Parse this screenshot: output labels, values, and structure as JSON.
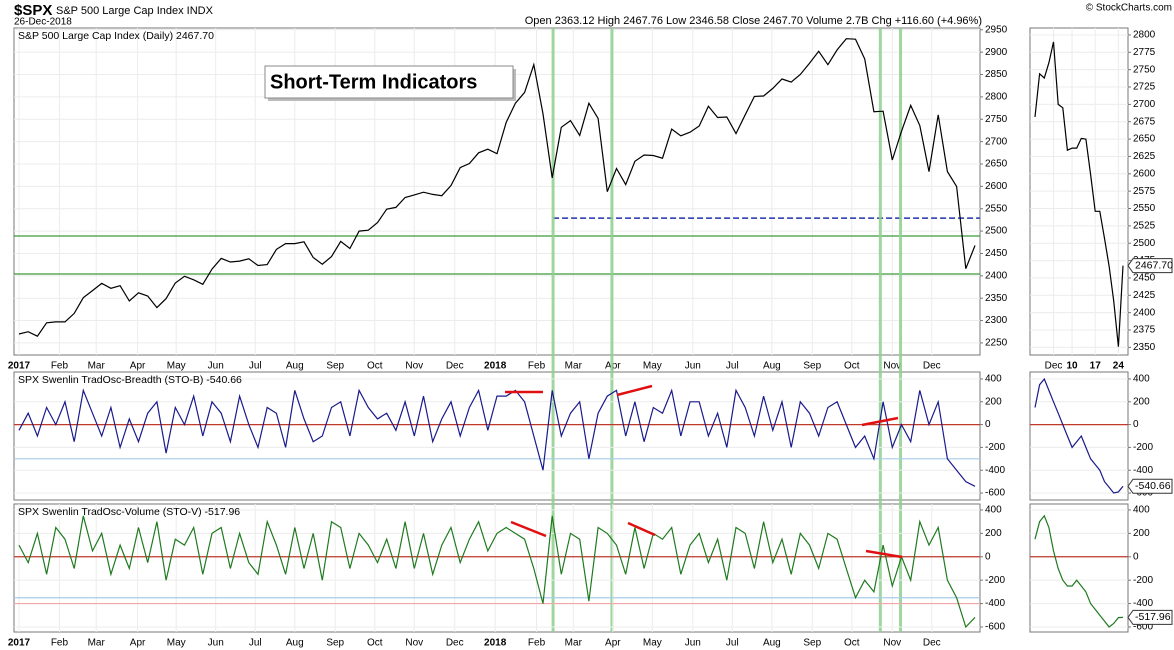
{
  "header": {
    "symbol": "$SPX",
    "name": "S&P 500 Large Cap Index INDX",
    "date": "26-Dec-2018",
    "quote": "Open 2363.12 High 2467.76 Low 2346.58 Close 2467.70 Volume 2.7B Chg +116.60 (+4.96%)",
    "credit": "© StockCharts.com"
  },
  "annotation": "Short-Term Indicators",
  "chart_data": [
    {
      "type": "line",
      "legend": "S&P 500 Large Cap Index (Daily) 2467.70",
      "color": "#000000",
      "grid": true,
      "values": [
        2270,
        2275,
        2265,
        2295,
        2297,
        2297,
        2316,
        2351,
        2367,
        2383,
        2372,
        2378,
        2344,
        2362,
        2355,
        2329,
        2349,
        2384,
        2399,
        2391,
        2381,
        2415,
        2439,
        2431,
        2433,
        2438,
        2423,
        2425,
        2459,
        2472,
        2472,
        2476,
        2441,
        2426,
        2443,
        2477,
        2461,
        2500,
        2502,
        2519,
        2549,
        2553,
        2575,
        2581,
        2587,
        2582,
        2579,
        2602,
        2642,
        2651,
        2675,
        2683,
        2673,
        2743,
        2786,
        2810,
        2872,
        2762,
        2619,
        2732,
        2747,
        2714,
        2786,
        2752,
        2588,
        2640,
        2604,
        2656,
        2670,
        2669,
        2663,
        2728,
        2713,
        2721,
        2735,
        2779,
        2754,
        2755,
        2718,
        2760,
        2801,
        2802,
        2819,
        2840,
        2833,
        2850,
        2875,
        2902,
        2872,
        2905,
        2930,
        2929,
        2885,
        2767,
        2768,
        2659,
        2723,
        2781,
        2736,
        2633,
        2760,
        2633,
        2600,
        2416,
        2467.7
      ],
      "ylim": [
        2223,
        2954
      ],
      "yticks": [
        2250,
        2300,
        2350,
        2400,
        2450,
        2500,
        2550,
        2600,
        2650,
        2700,
        2750,
        2800,
        2850,
        2900,
        2950
      ],
      "xticks": [
        {
          "value": 0,
          "label": "2017"
        },
        {
          "value": 4.4,
          "label": "Feb"
        },
        {
          "value": 8.4,
          "label": "Mar"
        },
        {
          "value": 12.9,
          "label": "Apr"
        },
        {
          "value": 17.1,
          "label": "May"
        },
        {
          "value": 21.4,
          "label": "Jun"
        },
        {
          "value": 25.7,
          "label": "Jul"
        },
        {
          "value": 30,
          "label": "Aug"
        },
        {
          "value": 34.4,
          "label": "Sep"
        },
        {
          "value": 38.7,
          "label": "Oct"
        },
        {
          "value": 43,
          "label": "Nov"
        },
        {
          "value": 47.4,
          "label": "Dec"
        },
        {
          "value": 51.8,
          "label": "2018"
        },
        {
          "value": 56.3,
          "label": "Feb"
        },
        {
          "value": 60.3,
          "label": "Mar"
        },
        {
          "value": 64.6,
          "label": "Apr"
        },
        {
          "value": 68.9,
          "label": "May"
        },
        {
          "value": 73.3,
          "label": "Jun"
        },
        {
          "value": 77.6,
          "label": "Jul"
        },
        {
          "value": 81.9,
          "label": "Aug"
        },
        {
          "value": 86.3,
          "label": "Sep"
        },
        {
          "value": 90.6,
          "label": "Oct"
        },
        {
          "value": 95,
          "label": "Nov"
        },
        {
          "value": 99.3,
          "label": "Dec"
        }
      ],
      "hlines": [
        {
          "value": 2489,
          "color": "#3a9a3a"
        },
        {
          "value": 2404,
          "color": "#3a9a3a"
        },
        {
          "value": 2529,
          "color": "#2233aa",
          "dashed": true,
          "from": 58.1
        }
      ],
      "vlines": [
        58.1,
        64.5,
        93.7,
        95.9
      ],
      "vline_color": "#8fd08f"
    },
    {
      "type": "line",
      "legend": "SPX Swenlin TradOsc-Breadth (STO-B) -540.66",
      "color": "#1a1a8c",
      "grid": true,
      "values": [
        -50,
        100,
        -100,
        150,
        0,
        200,
        -150,
        300,
        100,
        -100,
        150,
        -200,
        50,
        -150,
        100,
        200,
        -250,
        150,
        0,
        250,
        -100,
        200,
        100,
        -150,
        250,
        0,
        -200,
        150,
        100,
        -200,
        300,
        50,
        -150,
        -100,
        150,
        200,
        -100,
        300,
        150,
        50,
        100,
        -50,
        200,
        -100,
        250,
        -150,
        50,
        200,
        -100,
        150,
        300,
        -50,
        250,
        250,
        300,
        200,
        -100,
        -400,
        300,
        -100,
        100,
        200,
        -300,
        100,
        250,
        300,
        -100,
        200,
        -150,
        150,
        100,
        300,
        -100,
        200,
        200,
        -100,
        100,
        -200,
        300,
        150,
        -100,
        250,
        -50,
        200,
        -200,
        200,
        100,
        -100,
        150,
        200,
        0,
        -200,
        -100,
        -300,
        200,
        -200,
        0,
        -150,
        300,
        0,
        200,
        -300,
        -400,
        -500,
        -540.66
      ],
      "ylim": [
        -661,
        461
      ],
      "yticks": [
        400,
        200,
        0,
        -200,
        -400,
        -600
      ],
      "hlines": [
        {
          "value": 0,
          "color": "#c0392b"
        },
        {
          "value": -300,
          "color": "#a8cbe8"
        }
      ]
    },
    {
      "type": "line",
      "legend": "SPX Swenlin TradOsc-Volume (STO-V) -517.96",
      "color": "#1f7a1f",
      "grid": true,
      "values": [
        100,
        -50,
        200,
        -150,
        250,
        150,
        -100,
        350,
        50,
        200,
        -150,
        100,
        -100,
        250,
        -50,
        300,
        -200,
        150,
        100,
        250,
        -150,
        200,
        250,
        -100,
        200,
        -50,
        -150,
        300,
        100,
        -150,
        250,
        -100,
        200,
        -200,
        300,
        250,
        -100,
        200,
        100,
        -50,
        150,
        -100,
        300,
        -100,
        200,
        -150,
        100,
        250,
        -50,
        150,
        300,
        50,
        200,
        250,
        200,
        150,
        -100,
        -400,
        350,
        -150,
        200,
        150,
        -380,
        250,
        200,
        100,
        -150,
        250,
        -100,
        200,
        150,
        250,
        -150,
        100,
        200,
        -50,
        150,
        -200,
        250,
        200,
        -100,
        300,
        -50,
        150,
        -150,
        200,
        100,
        -100,
        200,
        150,
        -100,
        -350,
        -200,
        -300,
        100,
        -250,
        0,
        -200,
        300,
        100,
        250,
        -200,
        -350,
        -600,
        -517.96
      ],
      "ylim": [
        -643,
        451
      ],
      "yticks": [
        400,
        200,
        0,
        -200,
        -400,
        -600
      ],
      "xticks": [
        {
          "value": 0,
          "label": "2017"
        },
        {
          "value": 4.4,
          "label": "Feb"
        },
        {
          "value": 8.4,
          "label": "Mar"
        },
        {
          "value": 12.9,
          "label": "Apr"
        },
        {
          "value": 17.1,
          "label": "May"
        },
        {
          "value": 21.4,
          "label": "Jun"
        },
        {
          "value": 25.7,
          "label": "Jul"
        },
        {
          "value": 30,
          "label": "Aug"
        },
        {
          "value": 34.4,
          "label": "Sep"
        },
        {
          "value": 38.7,
          "label": "Oct"
        },
        {
          "value": 43,
          "label": "Nov"
        },
        {
          "value": 47.4,
          "label": "Dec"
        },
        {
          "value": 51.8,
          "label": "2018"
        },
        {
          "value": 56.3,
          "label": "Feb"
        },
        {
          "value": 60.3,
          "label": "Mar"
        },
        {
          "value": 64.6,
          "label": "Apr"
        },
        {
          "value": 68.9,
          "label": "May"
        },
        {
          "value": 73.3,
          "label": "Jun"
        },
        {
          "value": 77.6,
          "label": "Jul"
        },
        {
          "value": 81.9,
          "label": "Aug"
        },
        {
          "value": 86.3,
          "label": "Sep"
        },
        {
          "value": 90.6,
          "label": "Oct"
        },
        {
          "value": 95,
          "label": "Nov"
        },
        {
          "value": 99.3,
          "label": "Dec"
        }
      ],
      "hlines": [
        {
          "value": 0,
          "color": "#c0392b"
        },
        {
          "value": -350,
          "color": "#a8cbe8"
        },
        {
          "value": -400,
          "color": "#f2a6a6"
        }
      ]
    },
    {
      "type": "line",
      "color": "#000000",
      "grid": true,
      "last_label": "2467.70",
      "values": [
        2682,
        2744,
        2738,
        2760,
        2790,
        2700,
        2695,
        2634,
        2637,
        2637,
        2651,
        2650,
        2599,
        2546,
        2546,
        2507,
        2467,
        2417,
        2351,
        2467.7
      ],
      "ylim": [
        2339,
        2810
      ],
      "yticks": [
        2350,
        2375,
        2400,
        2425,
        2450,
        2475,
        2500,
        2525,
        2550,
        2575,
        2600,
        2625,
        2650,
        2675,
        2700,
        2725,
        2750,
        2775,
        2800
      ],
      "xticks": [
        {
          "value": 4,
          "label": "Dec"
        },
        {
          "value": 8,
          "label": "10"
        },
        {
          "value": 13,
          "label": "17"
        },
        {
          "value": 18,
          "label": "24"
        }
      ]
    },
    {
      "type": "line",
      "color": "#1a1a8c",
      "grid": true,
      "last_label": "-540.66",
      "values": [
        150,
        350,
        400,
        300,
        200,
        100,
        0,
        -100,
        -200,
        -150,
        -100,
        -200,
        -300,
        -350,
        -400,
        -500,
        -550,
        -600,
        -590,
        -540.66
      ],
      "ylim": [
        -661,
        461
      ],
      "yticks": [
        400,
        200,
        0,
        -200,
        -400,
        -600
      ],
      "hlines": [
        {
          "value": 0,
          "color": "#c0392b"
        }
      ]
    },
    {
      "type": "line",
      "color": "#1f7a1f",
      "grid": true,
      "last_label": "-517.96",
      "values": [
        150,
        300,
        350,
        250,
        50,
        -100,
        -200,
        -250,
        -250,
        -200,
        -250,
        -300,
        -400,
        -450,
        -500,
        -550,
        -600,
        -570,
        -520,
        -517.96
      ],
      "ylim": [
        -643,
        451
      ],
      "yticks": [
        400,
        200,
        0,
        -200,
        -400,
        -600
      ],
      "hlines": [
        {
          "value": 0,
          "color": "#c0392b"
        }
      ]
    }
  ]
}
